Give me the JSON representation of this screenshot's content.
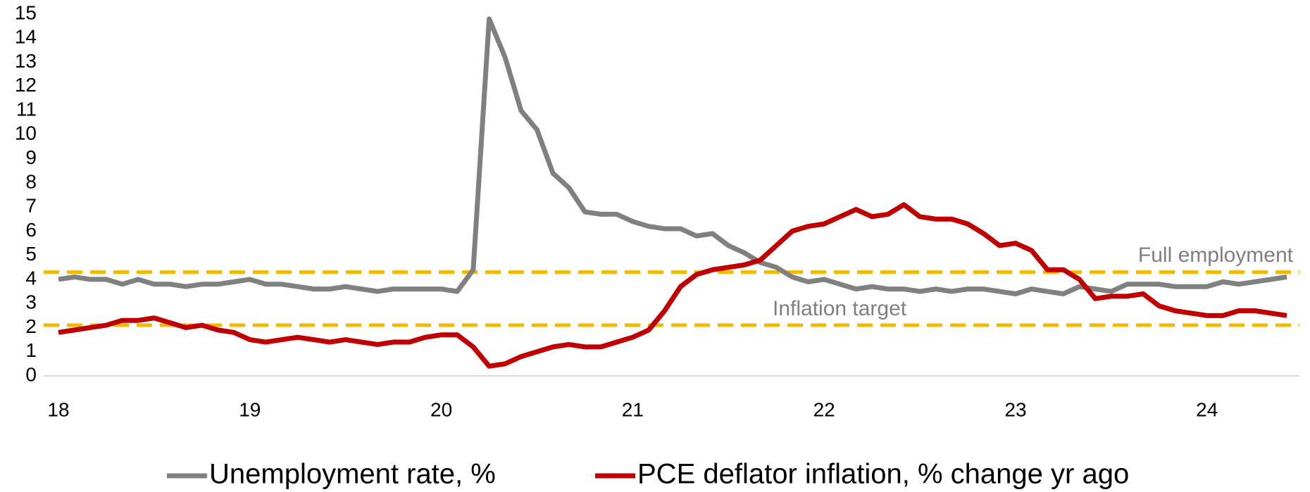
{
  "chart_data": {
    "type": "line",
    "categories": [
      "18",
      null,
      null,
      null,
      null,
      null,
      null,
      null,
      null,
      null,
      null,
      null,
      "19",
      null,
      null,
      null,
      null,
      null,
      null,
      null,
      null,
      null,
      null,
      null,
      "20",
      null,
      null,
      null,
      null,
      null,
      null,
      null,
      null,
      null,
      null,
      null,
      "21",
      null,
      null,
      null,
      null,
      null,
      null,
      null,
      null,
      null,
      null,
      null,
      "22",
      null,
      null,
      null,
      null,
      null,
      null,
      null,
      null,
      null,
      null,
      null,
      "23",
      null,
      null,
      null,
      null,
      null,
      null,
      null,
      null,
      null,
      null,
      null,
      "24",
      null,
      null,
      null,
      null,
      null
    ],
    "series": [
      {
        "name": "Unemployment rate, %",
        "color": "#808080",
        "values": [
          4.0,
          4.1,
          4.0,
          4.0,
          3.8,
          4.0,
          3.8,
          3.8,
          3.7,
          3.8,
          3.8,
          3.9,
          4.0,
          3.8,
          3.8,
          3.7,
          3.6,
          3.6,
          3.7,
          3.6,
          3.5,
          3.6,
          3.6,
          3.6,
          3.6,
          3.5,
          4.4,
          14.8,
          13.2,
          11.0,
          10.2,
          8.4,
          7.8,
          6.8,
          6.7,
          6.7,
          6.4,
          6.2,
          6.1,
          6.1,
          5.8,
          5.9,
          5.4,
          5.1,
          4.7,
          4.5,
          4.1,
          3.9,
          4.0,
          3.8,
          3.6,
          3.7,
          3.6,
          3.6,
          3.5,
          3.6,
          3.5,
          3.6,
          3.6,
          3.5,
          3.4,
          3.6,
          3.5,
          3.4,
          3.7,
          3.6,
          3.5,
          3.8,
          3.8,
          3.8,
          3.7,
          3.7,
          3.7,
          3.9,
          3.8,
          3.9,
          4.0,
          4.1
        ]
      },
      {
        "name": "PCE deflator inflation, % change yr ago",
        "color": "#c00000",
        "values": [
          1.8,
          1.9,
          2.0,
          2.1,
          2.3,
          2.3,
          2.4,
          2.2,
          2.0,
          2.1,
          1.9,
          1.8,
          1.5,
          1.4,
          1.5,
          1.6,
          1.5,
          1.4,
          1.5,
          1.4,
          1.3,
          1.4,
          1.4,
          1.6,
          1.7,
          1.7,
          1.2,
          0.4,
          0.5,
          0.8,
          1.0,
          1.2,
          1.3,
          1.2,
          1.2,
          1.4,
          1.6,
          1.9,
          2.7,
          3.7,
          4.2,
          4.4,
          4.5,
          4.6,
          4.8,
          5.4,
          6.0,
          6.2,
          6.3,
          6.6,
          6.9,
          6.6,
          6.7,
          7.1,
          6.6,
          6.5,
          6.5,
          6.3,
          5.9,
          5.4,
          5.5,
          5.2,
          4.4,
          4.4,
          4.0,
          3.2,
          3.3,
          3.3,
          3.4,
          2.9,
          2.7,
          2.6,
          2.5,
          2.5,
          2.7,
          2.7,
          2.6,
          2.5
        ]
      }
    ],
    "reference_lines": [
      {
        "label": "Full employment",
        "value": 4.3,
        "color": "#f5b800"
      },
      {
        "label": "Inflation target",
        "value": 2.1,
        "color": "#f5b800"
      }
    ],
    "ylim": [
      0,
      15
    ],
    "yticks": [
      0,
      1,
      2,
      3,
      4,
      5,
      6,
      7,
      8,
      9,
      10,
      11,
      12,
      13,
      14,
      15
    ],
    "grid": false,
    "legend": "bottom"
  }
}
